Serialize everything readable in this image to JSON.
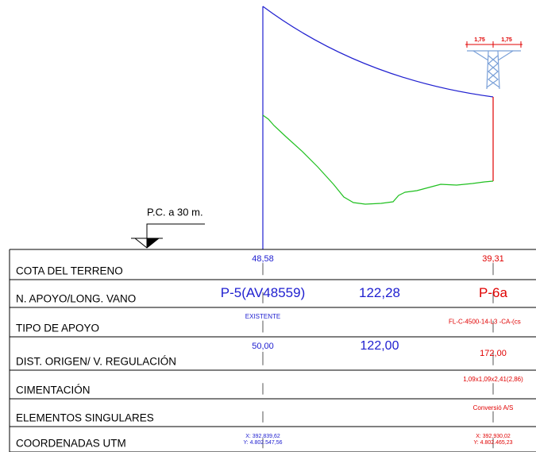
{
  "annotation": "P.C. a 30 m.",
  "tower": {
    "dims": [
      "1,75",
      "1,75"
    ]
  },
  "table": {
    "rows": [
      {
        "label": "COTA DEL TERRENO",
        "start": "48,58",
        "end": "39,31"
      },
      {
        "label": "N. APOYO/LONG. VANO",
        "start": "P-5(AV48559)",
        "middle": "122,28",
        "end": "P-6a"
      },
      {
        "label": "TIPO DE APOYO",
        "start": "EXISTENTE",
        "end": "FL-C-4500-14-L3 -CA-(cs"
      },
      {
        "label": "DIST. ORIGEN/ V. REGULACIÓN",
        "start": "50,00",
        "middle": "122,00",
        "end": "172,00"
      },
      {
        "label": "CIMENTACIÓN",
        "end": "1,09x1,09x2,41(2,86)"
      },
      {
        "label": "ELEMENTOS SINGULARES",
        "end": "Conversió A/S"
      },
      {
        "label": "COORDENADAS UTM",
        "start": [
          "X: 392.839,62",
          "Y: 4.802.547,56"
        ],
        "end": [
          "X: 392.930,02",
          "Y: 4.802.465,23"
        ]
      }
    ]
  }
}
